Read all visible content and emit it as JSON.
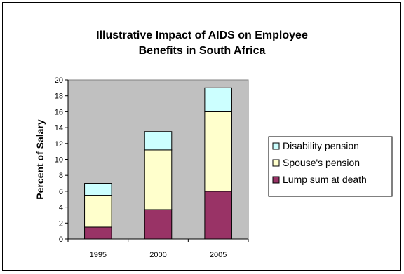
{
  "chart_data": {
    "type": "bar",
    "stacked": true,
    "title_lines": [
      "Illustrative Impact of AIDS on Employee",
      "Benefits in South Africa"
    ],
    "xlabel": "",
    "ylabel": "Percent of Salary",
    "categories": [
      "1995",
      "2000",
      "2005"
    ],
    "ylim": [
      0,
      20
    ],
    "yticks": [
      0,
      2,
      4,
      6,
      8,
      10,
      12,
      14,
      16,
      18,
      20
    ],
    "grid": false,
    "legend_position": "right",
    "series": [
      {
        "name": "Lump sum at death",
        "values": [
          1.5,
          3.7,
          6.0
        ],
        "color": "#993366"
      },
      {
        "name": "Spouse's pension",
        "values": [
          4.0,
          7.5,
          10.0
        ],
        "color": "#ffffcc"
      },
      {
        "name": "Disability pension",
        "values": [
          1.5,
          2.3,
          3.0
        ],
        "color": "#ccffff"
      }
    ],
    "legend_order": [
      "Disability pension",
      "Spouse's pension",
      "Lump sum at death"
    ],
    "plot_background": "#c0c0c0"
  }
}
